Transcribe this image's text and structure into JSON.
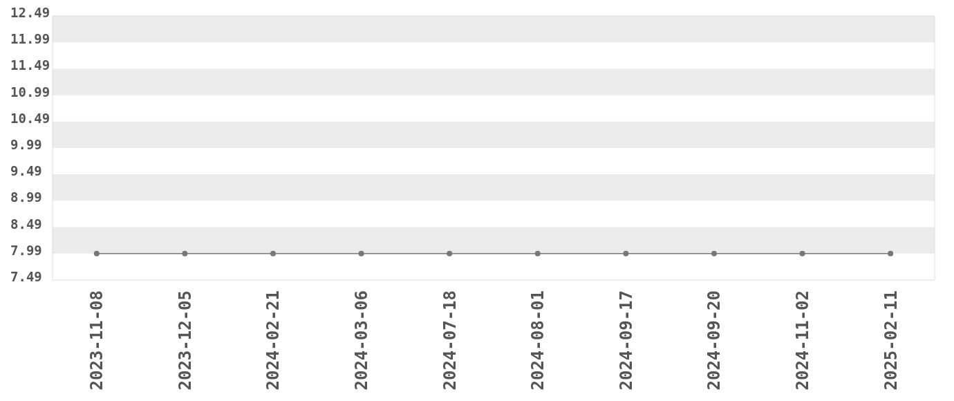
{
  "chart_data": {
    "type": "line",
    "categories": [
      "2023-11-08",
      "2023-12-05",
      "2024-02-21",
      "2024-03-06",
      "2024-07-18",
      "2024-08-01",
      "2024-09-17",
      "2024-09-20",
      "2024-11-02",
      "2025-02-11"
    ],
    "values": [
      7.99,
      7.99,
      7.99,
      7.99,
      7.99,
      7.99,
      7.99,
      7.99,
      7.99,
      7.99
    ],
    "color": "#777777",
    "marker": "circle",
    "ylim": [
      7.49,
      12.49
    ],
    "yticks": [
      {
        "value": 7.49,
        "label": "7.49"
      },
      {
        "value": 7.99,
        "label": "7.99"
      },
      {
        "value": 8.49,
        "label": "8.49"
      },
      {
        "value": 8.99,
        "label": "8.99"
      },
      {
        "value": 9.49,
        "label": "9.49"
      },
      {
        "value": 9.99,
        "label": "9.99"
      },
      {
        "value": 10.49,
        "label": "10.49"
      },
      {
        "value": 10.99,
        "label": "10.99"
      },
      {
        "value": 11.49,
        "label": "11.49"
      },
      {
        "value": 11.99,
        "label": "11.99"
      },
      {
        "value": 12.49,
        "label": "12.49"
      }
    ],
    "bands": [
      {
        "axis": "y",
        "from": 7.99,
        "to": 8.49,
        "color": "#ebebeb"
      },
      {
        "axis": "y",
        "from": 8.99,
        "to": 9.49,
        "color": "#ebebeb"
      },
      {
        "axis": "y",
        "from": 9.99,
        "to": 10.49,
        "color": "#ebebeb"
      },
      {
        "axis": "y",
        "from": 10.99,
        "to": 11.49,
        "color": "#ebebeb"
      },
      {
        "axis": "y",
        "from": 11.99,
        "to": 12.49,
        "color": "#ebebeb"
      }
    ]
  }
}
